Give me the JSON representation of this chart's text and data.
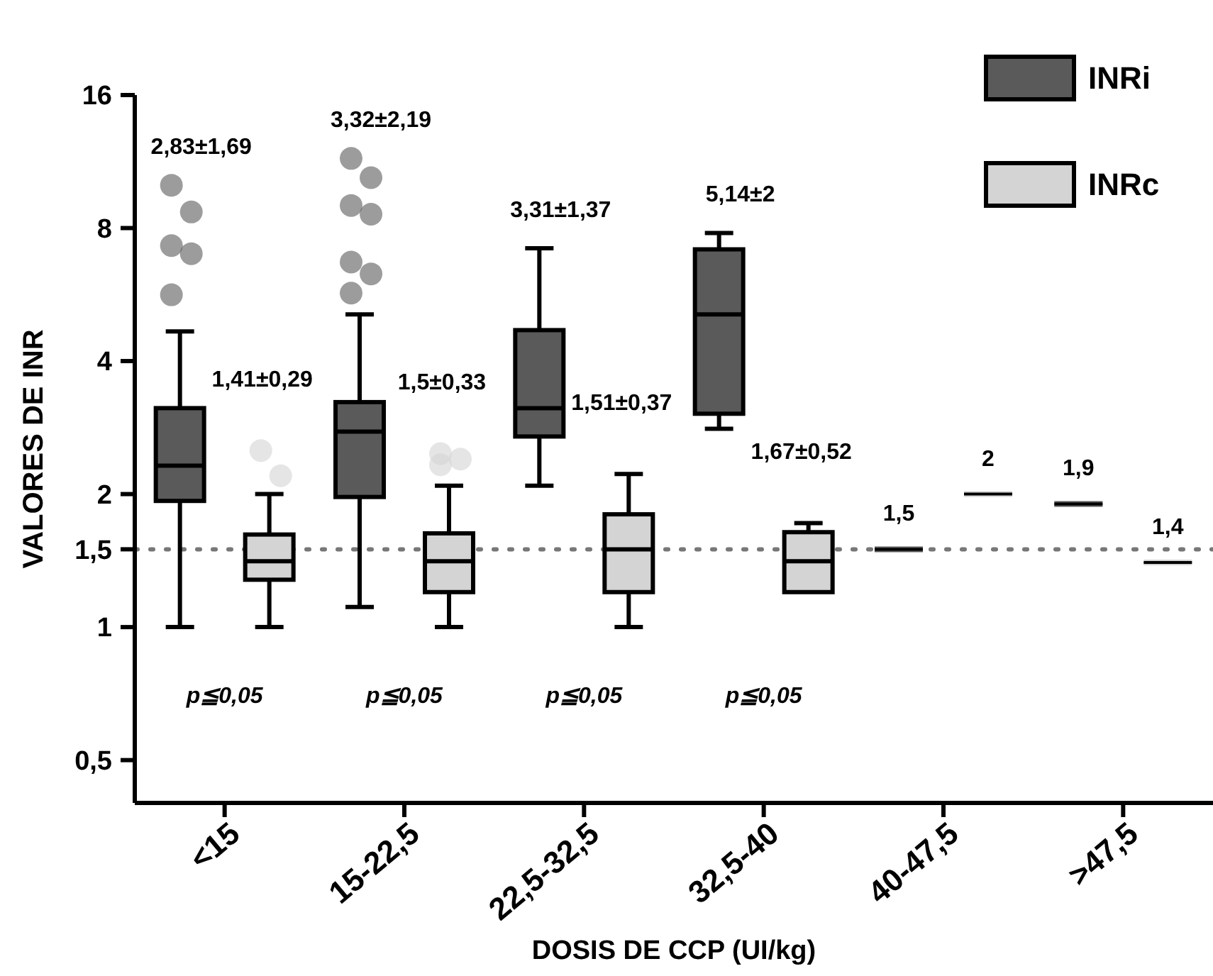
{
  "chart_data": {
    "type": "box",
    "xlabel": "DOSIS DE CCP (UI/kg)",
    "ylabel": "VALORES DE INR",
    "categories": [
      "<15",
      "15-22,5",
      "22,5-32,5",
      "32,5-40",
      "40-47,5",
      ">47,5"
    ],
    "log": true,
    "ylim": [
      0.4,
      16
    ],
    "yticks": [
      {
        "value": 0.5,
        "label": "0,5"
      },
      1,
      {
        "value": 1.5,
        "label": "1,5"
      },
      2,
      4,
      8,
      16
    ],
    "legend": "top right",
    "grid": false,
    "series": [
      {
        "name": "INRi",
        "color": "#5a5a5a",
        "boxes": [
          {
            "low": 1,
            "q1": 1.93,
            "median": 2.32,
            "q3": 3.13,
            "high": 4.67,
            "outliers": [
              10,
              8.7,
              7.3,
              7,
              5.65
            ]
          },
          {
            "low": 1.11,
            "q1": 1.97,
            "median": 2.77,
            "q3": 3.23,
            "high": 5.1,
            "outliers": [
              11.5,
              10.4,
              9,
              8.6,
              6.7,
              6.3,
              5.7
            ]
          },
          {
            "low": 2.09,
            "q1": 2.7,
            "median": 3.13,
            "q3": 4.7,
            "high": 7.2
          },
          {
            "low": 2.81,
            "q1": 3.04,
            "median": 5.1,
            "q3": 7.16,
            "high": 7.8
          },
          {
            "low": 1.5,
            "q1": 1.5,
            "median": 1.5,
            "q3": 1.5,
            "high": 1.5
          },
          {
            "low": 1.9,
            "q1": 1.9,
            "median": 1.9,
            "q3": 1.9,
            "high": 1.9
          }
        ],
        "value_labels": [
          "2,83±1,69",
          "3,32±2,19",
          "3,31±1,37",
          "5,14±2",
          "1,5",
          "1,9"
        ]
      },
      {
        "name": "INRc",
        "color": "#d4d4d4",
        "boxes": [
          {
            "low": 1,
            "q1": 1.28,
            "median": 1.41,
            "q3": 1.62,
            "high": 2,
            "outliers": [
              2.51,
              2.2
            ]
          },
          {
            "low": 1,
            "q1": 1.2,
            "median": 1.41,
            "q3": 1.63,
            "high": 2.09,
            "outliers": [
              2.47,
              2.4,
              2.33
            ]
          },
          {
            "low": 1,
            "q1": 1.2,
            "median": 1.5,
            "q3": 1.8,
            "high": 2.22
          },
          {
            "low": 1.2,
            "q1": 1.2,
            "median": 1.41,
            "q3": 1.64,
            "high": 1.72
          },
          {
            "low": 2,
            "q1": 2,
            "median": 2,
            "q3": 2,
            "high": 2
          },
          {
            "low": 1.4,
            "q1": 1.4,
            "median": 1.4,
            "q3": 1.4,
            "high": 1.4
          }
        ],
        "value_labels": [
          "1,41±0,29",
          "1,5±0,33",
          "1,51±0,37",
          "1,67±0,52",
          "2",
          "1,4"
        ]
      }
    ],
    "ref_lines": [
      {
        "axis": "y",
        "value": 1.5,
        "line_style": "dotted",
        "color": "#777777"
      }
    ],
    "annotations": [
      "p≦0,05",
      "p≦0,05",
      "p≦0,05",
      "p≦0,05"
    ]
  }
}
